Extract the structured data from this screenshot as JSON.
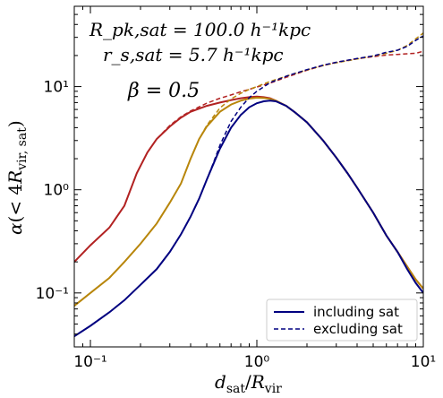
{
  "chart_data": {
    "type": "line",
    "title": "",
    "xlabel": "d_sat / R_vir",
    "ylabel": "α(< 4R_vir,sat)",
    "xscale": "log",
    "yscale": "log",
    "xlim": [
      0.08,
      10
    ],
    "ylim": [
      0.03,
      60
    ],
    "grid": false,
    "legend_position": "bottom-right",
    "legend": [
      {
        "label": "including sat",
        "style": "solid",
        "color": "#000080"
      },
      {
        "label": "excluding sat",
        "style": "dashed",
        "color": "#000080"
      }
    ],
    "x_ticks": [
      {
        "value": 0.1,
        "label": "10⁻¹"
      },
      {
        "value": 1,
        "label": "10⁰"
      },
      {
        "value": 10,
        "label": "10¹"
      }
    ],
    "y_ticks": [
      {
        "value": 0.1,
        "label": "10⁻¹"
      },
      {
        "value": 1,
        "label": "10⁰"
      },
      {
        "value": 10,
        "label": "10¹"
      }
    ],
    "annotations": [
      {
        "text": "R_pk,sat = 100.0 h⁻¹kpc"
      },
      {
        "text": "r_s,sat = 5.7 h⁻¹kpc"
      },
      {
        "text": "β = 0.5"
      }
    ],
    "colors": {
      "red": "#b22222",
      "gold": "#b8860b",
      "navy": "#000080"
    },
    "series": [
      {
        "color": "#b22222",
        "style": "solid",
        "x": [
          0.08,
          0.1,
          0.13,
          0.16,
          0.19,
          0.22,
          0.25,
          0.3,
          0.35,
          0.4,
          0.5,
          0.6,
          0.7,
          0.8,
          0.9,
          1.0,
          1.1,
          1.2,
          1.3,
          1.5,
          1.7,
          2.0,
          2.5,
          3.0,
          3.5,
          4.0,
          5.0,
          6.0,
          7.0,
          8.0,
          9.0,
          10.0
        ],
        "y": [
          0.2,
          0.29,
          0.43,
          0.7,
          1.45,
          2.3,
          3.1,
          4.1,
          5.0,
          5.7,
          6.5,
          7.0,
          7.4,
          7.7,
          7.9,
          8.0,
          7.9,
          7.7,
          7.3,
          6.5,
          5.6,
          4.5,
          3.0,
          2.05,
          1.45,
          1.05,
          0.6,
          0.36,
          0.25,
          0.18,
          0.135,
          0.11
        ]
      },
      {
        "color": "#b22222",
        "style": "dashed",
        "x": [
          0.08,
          0.1,
          0.13,
          0.16,
          0.19,
          0.22,
          0.25,
          0.3,
          0.35,
          0.4,
          0.5,
          0.6,
          0.7,
          0.8,
          0.9,
          1.0,
          1.2,
          1.5,
          2.0,
          2.5,
          3.0,
          4.0,
          5.0,
          6.0,
          7.0,
          8.0,
          9.0,
          10.0
        ],
        "y": [
          0.2,
          0.29,
          0.43,
          0.7,
          1.45,
          2.3,
          3.1,
          4.2,
          5.1,
          5.8,
          6.9,
          7.7,
          8.3,
          8.9,
          9.4,
          9.9,
          10.8,
          12.3,
          14.4,
          16.0,
          17.2,
          18.6,
          19.5,
          20.2,
          20.5,
          20.8,
          21.0,
          22.0
        ]
      },
      {
        "color": "#b8860b",
        "style": "solid",
        "x": [
          0.08,
          0.1,
          0.13,
          0.16,
          0.2,
          0.25,
          0.3,
          0.35,
          0.4,
          0.45,
          0.5,
          0.6,
          0.7,
          0.8,
          0.9,
          1.0,
          1.1,
          1.2,
          1.3,
          1.5,
          1.7,
          2.0,
          2.5,
          3.0,
          3.5,
          4.0,
          5.0,
          6.0,
          7.0,
          8.0,
          9.0,
          10.0
        ],
        "y": [
          0.075,
          0.1,
          0.14,
          0.2,
          0.3,
          0.47,
          0.75,
          1.15,
          2.0,
          3.1,
          4.1,
          5.7,
          6.7,
          7.3,
          7.65,
          7.8,
          7.75,
          7.6,
          7.3,
          6.5,
          5.6,
          4.5,
          3.0,
          2.05,
          1.45,
          1.05,
          0.6,
          0.36,
          0.25,
          0.18,
          0.135,
          0.11
        ]
      },
      {
        "color": "#b8860b",
        "style": "dashed",
        "x": [
          0.08,
          0.1,
          0.13,
          0.16,
          0.2,
          0.25,
          0.3,
          0.35,
          0.4,
          0.45,
          0.5,
          0.6,
          0.7,
          0.8,
          0.9,
          1.0,
          1.2,
          1.5,
          2.0,
          2.5,
          3.0,
          4.0,
          5.0,
          6.0,
          7.0,
          8.0,
          9.0,
          10.0
        ],
        "y": [
          0.075,
          0.1,
          0.14,
          0.2,
          0.3,
          0.47,
          0.75,
          1.15,
          2.0,
          3.1,
          4.2,
          6.2,
          7.6,
          8.6,
          9.4,
          10.0,
          11.2,
          12.6,
          14.5,
          16.0,
          17.0,
          18.5,
          19.8,
          21.0,
          22.5,
          25.0,
          29.0,
          33.0
        ]
      },
      {
        "color": "#000080",
        "style": "solid",
        "x": [
          0.08,
          0.1,
          0.13,
          0.16,
          0.2,
          0.25,
          0.3,
          0.35,
          0.4,
          0.45,
          0.5,
          0.55,
          0.6,
          0.7,
          0.8,
          0.9,
          1.0,
          1.1,
          1.2,
          1.3,
          1.5,
          1.7,
          2.0,
          2.5,
          3.0,
          3.5,
          4.0,
          5.0,
          6.0,
          7.0,
          8.0,
          9.0,
          10.0
        ],
        "y": [
          0.038,
          0.048,
          0.065,
          0.085,
          0.12,
          0.17,
          0.25,
          0.37,
          0.55,
          0.82,
          1.25,
          1.8,
          2.5,
          4.0,
          5.3,
          6.3,
          6.9,
          7.2,
          7.3,
          7.2,
          6.5,
          5.6,
          4.5,
          3.0,
          2.05,
          1.45,
          1.05,
          0.6,
          0.36,
          0.25,
          0.17,
          0.125,
          0.1
        ]
      },
      {
        "color": "#000080",
        "style": "dashed",
        "x": [
          0.08,
          0.1,
          0.13,
          0.16,
          0.2,
          0.25,
          0.3,
          0.35,
          0.4,
          0.45,
          0.5,
          0.55,
          0.6,
          0.7,
          0.8,
          0.9,
          1.0,
          1.2,
          1.5,
          2.0,
          2.5,
          3.0,
          4.0,
          5.0,
          6.0,
          7.0,
          8.0,
          9.0,
          10.0
        ],
        "y": [
          0.038,
          0.048,
          0.065,
          0.085,
          0.12,
          0.17,
          0.25,
          0.37,
          0.55,
          0.82,
          1.25,
          1.85,
          2.7,
          4.6,
          6.3,
          7.8,
          9.0,
          10.9,
          12.6,
          14.6,
          16.1,
          17.2,
          18.7,
          19.8,
          21.5,
          22.5,
          24.5,
          28.0,
          31.0
        ]
      }
    ]
  }
}
